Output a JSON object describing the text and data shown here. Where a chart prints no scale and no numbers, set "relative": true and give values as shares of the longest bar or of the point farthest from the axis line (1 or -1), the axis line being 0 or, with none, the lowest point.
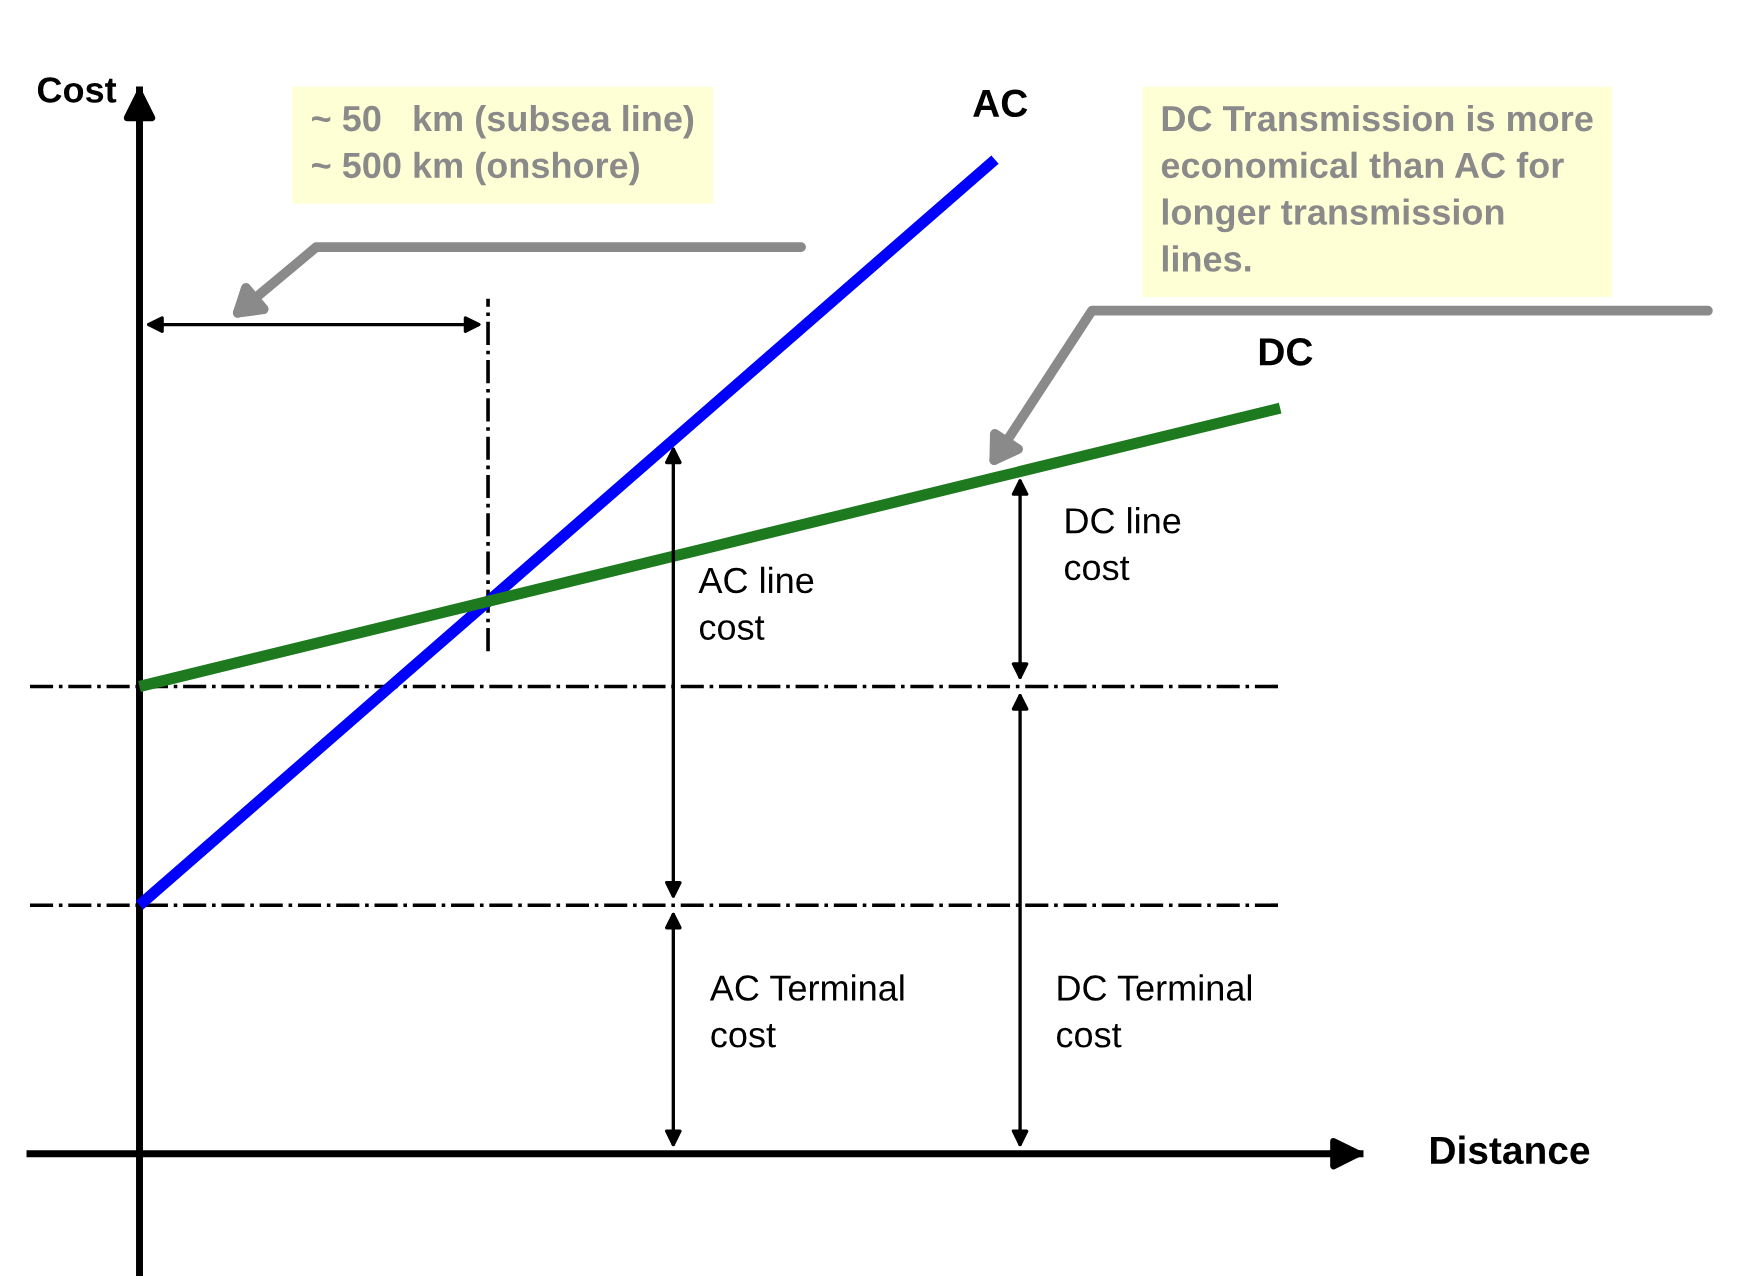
{
  "chart_data": {
    "type": "line",
    "relative": true,
    "xlabel": "Distance",
    "ylabel": "Cost",
    "categories": [
      null,
      null,
      null,
      null,
      null
    ],
    "series": [
      {
        "name": "AC",
        "color": "#0000ff",
        "values": [
          0.25,
          0.5,
          0.75,
          1.0,
          null
        ]
      },
      {
        "name": "DC",
        "color": "#1e7a1e",
        "values": [
          0.47,
          0.54,
          0.61,
          0.68,
          0.75
        ]
      }
    ],
    "ref_lines": [
      {
        "axis": "y",
        "value": 0.47,
        "line_style": "dashdot",
        "color": "#000000"
      },
      {
        "axis": "y",
        "value": 0.25,
        "line_style": "dashdot",
        "color": "#000000"
      }
    ],
    "annotations": [
      "~ 50   km (subsea line)\n~ 500 km (onshore)",
      "DC Transmission is more\neconomical than AC for\nlonger transmission\nlines.",
      "AC line\ncost",
      "AC Terminal\ncost",
      "DC line\ncost",
      "DC Terminal\ncost"
    ],
    "marker": "none",
    "line_style": "solid"
  }
}
